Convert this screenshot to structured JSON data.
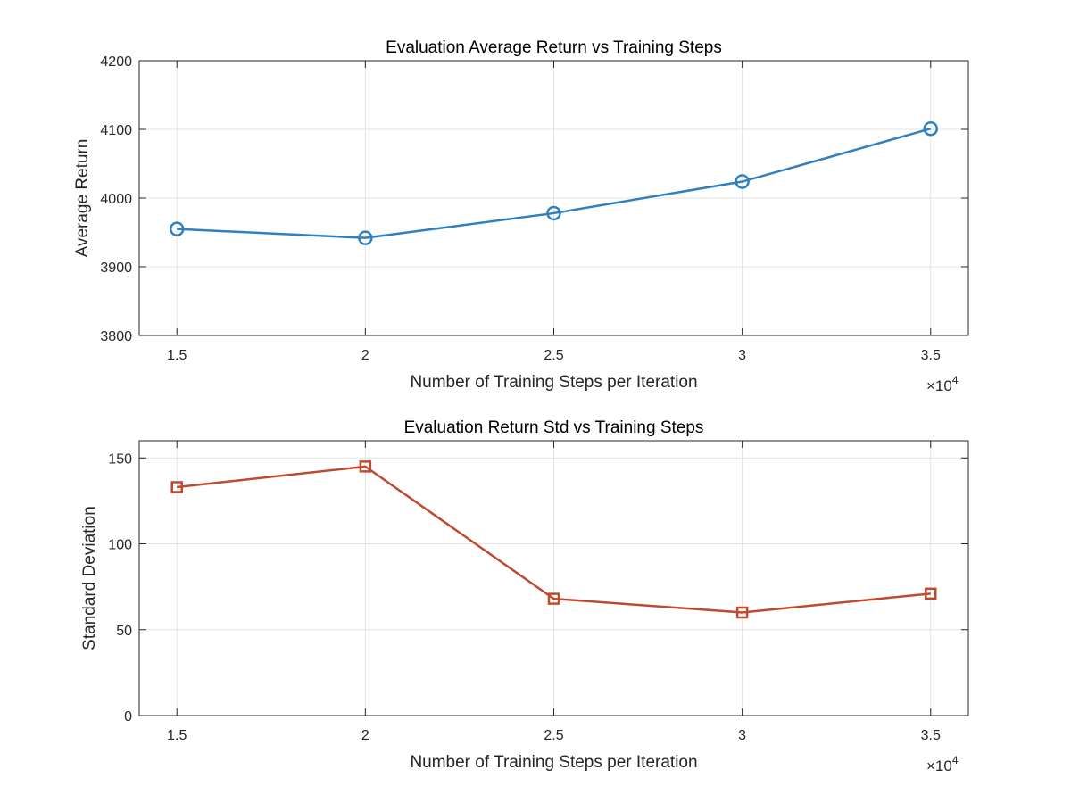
{
  "chart_data": [
    {
      "type": "line",
      "title": "Evaluation Average Return vs Training Steps",
      "xlabel": "Number of Training Steps per Iteration",
      "ylabel": "Average Return",
      "x": [
        15000,
        20000,
        25000,
        30000,
        35000
      ],
      "x_ticks": [
        "1.5",
        "2",
        "2.5",
        "3",
        "3.5"
      ],
      "x_exponent": {
        "base": "×10",
        "power": "4"
      },
      "y_ticks": [
        "3800",
        "3900",
        "4000",
        "4100",
        "4200"
      ],
      "xlim": [
        14000,
        36000
      ],
      "ylim": [
        3800,
        4200
      ],
      "grid": true,
      "series": [
        {
          "values": [
            3955,
            3942,
            3978,
            4024,
            4101
          ],
          "color": "#3080c0",
          "marker": "circle"
        }
      ]
    },
    {
      "type": "line",
      "title": "Evaluation Return Std vs Training Steps",
      "xlabel": "Number of Training Steps per Iteration",
      "ylabel": "Standard Deviation",
      "x": [
        15000,
        20000,
        25000,
        30000,
        35000
      ],
      "x_ticks": [
        "1.5",
        "2",
        "2.5",
        "3",
        "3.5"
      ],
      "x_exponent": {
        "base": "×10",
        "power": "4"
      },
      "y_ticks": [
        "0",
        "50",
        "100",
        "150"
      ],
      "xlim": [
        14000,
        36000
      ],
      "ylim": [
        0,
        160
      ],
      "grid": true,
      "series": [
        {
          "values": [
            133,
            145,
            68,
            60,
            71
          ],
          "color": "#c04a30",
          "marker": "square"
        }
      ]
    }
  ]
}
